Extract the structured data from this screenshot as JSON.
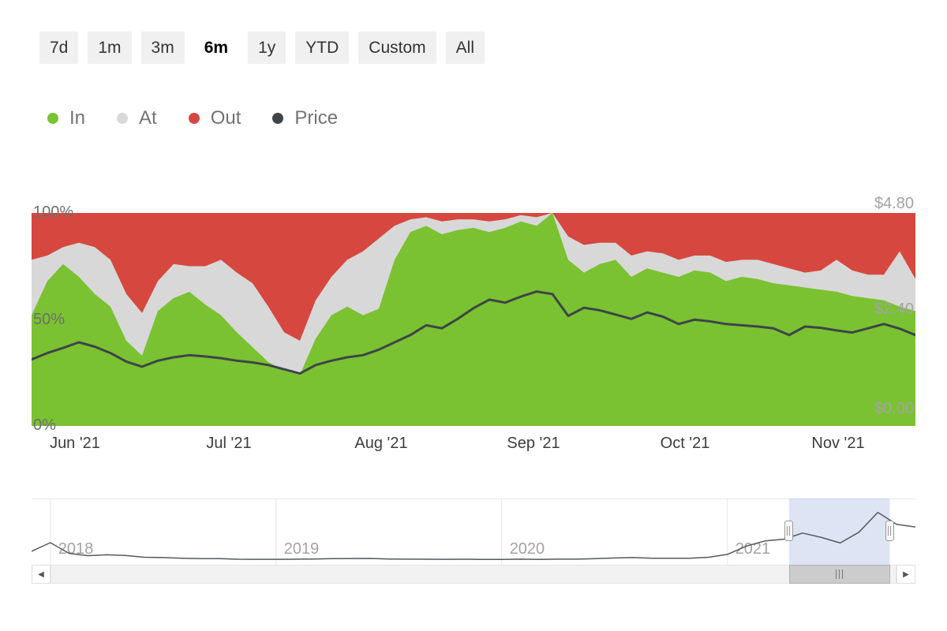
{
  "toolbar": {
    "buttons": [
      {
        "label": "7d",
        "selected": false
      },
      {
        "label": "1m",
        "selected": false
      },
      {
        "label": "3m",
        "selected": false
      },
      {
        "label": "6m",
        "selected": true
      },
      {
        "label": "1y",
        "selected": false
      },
      {
        "label": "YTD",
        "selected": false
      },
      {
        "label": "Custom",
        "selected": false
      },
      {
        "label": "All",
        "selected": false
      }
    ]
  },
  "legend": {
    "items": [
      {
        "label": "In",
        "color": "#7ac231"
      },
      {
        "label": "At",
        "color": "#d8d8d8"
      },
      {
        "label": "Out",
        "color": "#d6483f"
      },
      {
        "label": "Price",
        "color": "#3f4448"
      }
    ]
  },
  "chart_data": [
    {
      "id": "in-out-of-the-money",
      "type": "area",
      "stacking": "percent",
      "dates": [
        "2021-05-31",
        "2021-06-03",
        "2021-06-06",
        "2021-06-09",
        "2021-06-12",
        "2021-06-15",
        "2021-06-18",
        "2021-06-21",
        "2021-06-24",
        "2021-06-27",
        "2021-06-30",
        "2021-07-03",
        "2021-07-06",
        "2021-07-09",
        "2021-07-12",
        "2021-07-15",
        "2021-07-18",
        "2021-07-21",
        "2021-07-24",
        "2021-07-27",
        "2021-07-30",
        "2021-08-02",
        "2021-08-05",
        "2021-08-08",
        "2021-08-11",
        "2021-08-14",
        "2021-08-17",
        "2021-08-20",
        "2021-08-23",
        "2021-08-26",
        "2021-08-29",
        "2021-09-01",
        "2021-09-04",
        "2021-09-07",
        "2021-09-10",
        "2021-09-13",
        "2021-09-16",
        "2021-09-19",
        "2021-09-22",
        "2021-09-25",
        "2021-09-28",
        "2021-10-01",
        "2021-10-04",
        "2021-10-07",
        "2021-10-10",
        "2021-10-13",
        "2021-10-16",
        "2021-10-19",
        "2021-10-22",
        "2021-10-25",
        "2021-10-28",
        "2021-10-31",
        "2021-11-03",
        "2021-11-06",
        "2021-11-09",
        "2021-11-12",
        "2021-11-15"
      ],
      "series": [
        {
          "name": "In",
          "color": "#7ac231",
          "unit": "%",
          "values": [
            52,
            68,
            76,
            70,
            62,
            56,
            40,
            33,
            54,
            60,
            63,
            57,
            52,
            44,
            37,
            30,
            26,
            24,
            41,
            52,
            56,
            52,
            55,
            78,
            91,
            94,
            90,
            92,
            93,
            91,
            93,
            96,
            94,
            100,
            78,
            72,
            76,
            78,
            70,
            74,
            72,
            70,
            73,
            72,
            68,
            70,
            69,
            67,
            66,
            65,
            64,
            63,
            61,
            60,
            59,
            56,
            54
          ]
        },
        {
          "name": "At",
          "color": "#d8d8d8",
          "unit": "%",
          "values": [
            26,
            12,
            8,
            16,
            22,
            22,
            22,
            20,
            14,
            16,
            12,
            18,
            26,
            28,
            30,
            26,
            18,
            16,
            18,
            18,
            22,
            30,
            33,
            16,
            6,
            4,
            6,
            5,
            4,
            5,
            4,
            3,
            4,
            0,
            11,
            13,
            10,
            8,
            10,
            8,
            9,
            8,
            7,
            8,
            9,
            8,
            9,
            9,
            8,
            7,
            9,
            15,
            12,
            11,
            12,
            26,
            15
          ]
        },
        {
          "name": "Out",
          "color": "#d6483f",
          "unit": "%",
          "values": [
            22,
            20,
            16,
            14,
            16,
            22,
            38,
            47,
            32,
            24,
            25,
            25,
            22,
            28,
            33,
            44,
            56,
            60,
            41,
            30,
            22,
            18,
            12,
            6,
            3,
            2,
            4,
            3,
            3,
            4,
            3,
            1,
            2,
            0,
            11,
            15,
            14,
            14,
            20,
            18,
            19,
            22,
            20,
            20,
            23,
            22,
            22,
            24,
            26,
            28,
            27,
            22,
            27,
            29,
            29,
            18,
            31
          ]
        },
        {
          "name": "Price",
          "color": "#3f4448",
          "unit": "USD",
          "values": [
            1.15,
            1.3,
            1.42,
            1.55,
            1.45,
            1.3,
            1.1,
            0.98,
            1.12,
            1.2,
            1.25,
            1.22,
            1.18,
            1.12,
            1.08,
            1.02,
            0.92,
            0.82,
            1.02,
            1.12,
            1.2,
            1.25,
            1.38,
            1.55,
            1.72,
            1.95,
            1.88,
            2.1,
            2.35,
            2.55,
            2.48,
            2.62,
            2.74,
            2.68,
            2.17,
            2.36,
            2.3,
            2.2,
            2.1,
            2.25,
            2.15,
            1.98,
            2.08,
            2.04,
            1.98,
            1.95,
            1.92,
            1.88,
            1.72,
            1.92,
            1.89,
            1.83,
            1.78,
            1.88,
            1.98,
            1.87,
            1.72
          ]
        }
      ],
      "y_axis_left": {
        "min": 0,
        "max": 100,
        "tick_labels": [
          "100%",
          "50%",
          "0%"
        ]
      },
      "y_axis_right": {
        "min": 0,
        "max": 4.8,
        "tick_labels": [
          "$4.80",
          "$2.40",
          "$0.00"
        ]
      },
      "x_tick_labels": [
        "Jun '21",
        "Jul '21",
        "Aug '21",
        "Sep '21",
        "Oct '21",
        "Nov '21"
      ],
      "grid": false,
      "legend_position": "top"
    },
    {
      "id": "navigator",
      "type": "line",
      "color": "#55595c",
      "months": [
        "2017-12",
        "2018-01",
        "2018-02",
        "2018-03",
        "2018-04",
        "2018-05",
        "2018-06",
        "2018-07",
        "2018-08",
        "2018-09",
        "2018-10",
        "2018-11",
        "2018-12",
        "2019-01",
        "2019-02",
        "2019-03",
        "2019-04",
        "2019-05",
        "2019-06",
        "2019-07",
        "2019-08",
        "2019-09",
        "2019-10",
        "2019-11",
        "2019-12",
        "2020-01",
        "2020-02",
        "2020-03",
        "2020-04",
        "2020-05",
        "2020-06",
        "2020-07",
        "2020-08",
        "2020-09",
        "2020-10",
        "2020-11",
        "2020-12",
        "2021-01",
        "2021-02",
        "2021-03",
        "2021-04",
        "2021-05",
        "2021-06",
        "2021-07",
        "2021-08",
        "2021-09",
        "2021-10",
        "2021-11"
      ],
      "values": [
        0.5,
        1.0,
        0.38,
        0.25,
        0.3,
        0.26,
        0.16,
        0.14,
        0.1,
        0.08,
        0.075,
        0.045,
        0.04,
        0.043,
        0.045,
        0.06,
        0.08,
        0.085,
        0.09,
        0.06,
        0.05,
        0.045,
        0.04,
        0.045,
        0.035,
        0.035,
        0.05,
        0.035,
        0.05,
        0.05,
        0.08,
        0.12,
        0.14,
        0.1,
        0.1,
        0.1,
        0.16,
        0.32,
        0.8,
        1.1,
        1.2,
        1.55,
        1.3,
        0.98,
        1.6,
        2.74,
        2.05,
        1.9
      ],
      "year_labels": [
        "2018",
        "2019",
        "2020",
        "2021"
      ],
      "year_gridline_indices": [
        1,
        13,
        25,
        37
      ],
      "selection": {
        "from": "2021-06",
        "to": "2021-11",
        "start_frac": 0.857,
        "end_frac": 0.971
      }
    }
  ],
  "scrollbar": {
    "left_arrow": "◀",
    "right_arrow": "▶"
  }
}
